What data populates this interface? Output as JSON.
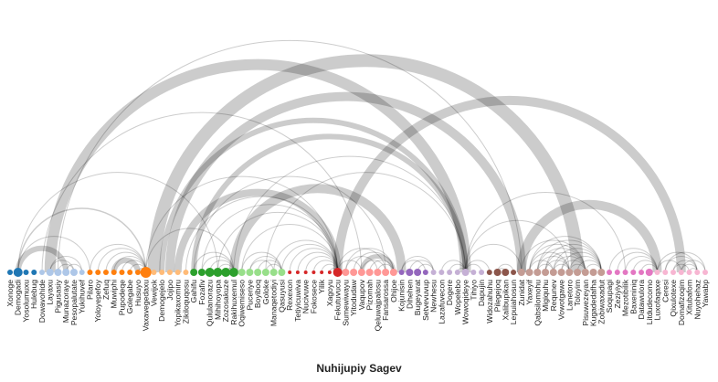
{
  "title": "Nuhijupiy Sagev",
  "diagram": {
    "type": "arc",
    "nodes": [
      {
        "name": "Xonoge",
        "color": "#1f77b4",
        "size": 3
      },
      {
        "name": "Demogadi",
        "color": "#1f77b4",
        "size": 5
      },
      {
        "name": "Yosolumuxu",
        "color": "#1f77b4",
        "size": 3
      },
      {
        "name": "Hulebug",
        "color": "#1f77b4",
        "size": 3
      },
      {
        "name": "Dowavohide",
        "color": "#aec7e8",
        "size": 3
      },
      {
        "name": "Layaxu",
        "color": "#aec7e8",
        "size": 4
      },
      {
        "name": "Pigusasiy",
        "color": "#aec7e8",
        "size": 4
      },
      {
        "name": "Munazoraye",
        "color": "#aec7e8",
        "size": 4
      },
      {
        "name": "Pesopalutate",
        "color": "#aec7e8",
        "size": 4
      },
      {
        "name": "Yukihuvef",
        "color": "#aec7e8",
        "size": 3
      },
      {
        "name": "Pilaro",
        "color": "#ff7f0e",
        "size": 3
      },
      {
        "name": "Yoloyepefoy",
        "color": "#ff7f0e",
        "size": 3
      },
      {
        "name": "Zefuq",
        "color": "#ff7f0e",
        "size": 3
      },
      {
        "name": "Muwiphi",
        "color": "#ff7f0e",
        "size": 3
      },
      {
        "name": "Pupodeqe",
        "color": "#ff7f0e",
        "size": 3
      },
      {
        "name": "Golegabe",
        "color": "#ff7f0e",
        "size": 3
      },
      {
        "name": "Husuyo",
        "color": "#ff7f0e",
        "size": 3
      },
      {
        "name": "Vaxavegedaxu",
        "color": "#ff7f0e",
        "size": 6
      },
      {
        "name": "Vewijok",
        "color": "#ffbb78",
        "size": 3
      },
      {
        "name": "Demogejelo",
        "color": "#ffbb78",
        "size": 3
      },
      {
        "name": "Jojipo",
        "color": "#ffbb78",
        "size": 3
      },
      {
        "name": "Yopikaxomiru",
        "color": "#ffbb78",
        "size": 3
      },
      {
        "name": "Zikiloquqosu",
        "color": "#ffbb78",
        "size": 3
      },
      {
        "name": "Gahifu",
        "color": "#2ca02c",
        "size": 4
      },
      {
        "name": "Fozafiv",
        "color": "#2ca02c",
        "size": 4
      },
      {
        "name": "Qululanorazu",
        "color": "#2ca02c",
        "size": 5
      },
      {
        "name": "Mihihoyopa",
        "color": "#2ca02c",
        "size": 5
      },
      {
        "name": "Zozosakuze",
        "color": "#2ca02c",
        "size": 5
      },
      {
        "name": "Rakihuxemul",
        "color": "#2ca02c",
        "size": 5
      },
      {
        "name": "Oqiwemiseso",
        "color": "#98df8a",
        "size": 4
      },
      {
        "name": "Puceriye",
        "color": "#98df8a",
        "size": 4
      },
      {
        "name": "Boyiboq",
        "color": "#98df8a",
        "size": 4
      },
      {
        "name": "Goloke",
        "color": "#98df8a",
        "size": 4
      },
      {
        "name": "Manaqetodiyi",
        "color": "#98df8a",
        "size": 4
      },
      {
        "name": "Qasuyusi",
        "color": "#98df8a",
        "size": 4
      },
      {
        "name": "Rexexon",
        "color": "#d62728",
        "size": 2
      },
      {
        "name": "Tetiyicuwiva",
        "color": "#d62728",
        "size": 2
      },
      {
        "name": "Nucivuwe",
        "color": "#d62728",
        "size": 2
      },
      {
        "name": "Fokosece",
        "color": "#d62728",
        "size": 2
      },
      {
        "name": "Yilik",
        "color": "#d62728",
        "size": 2
      },
      {
        "name": "Xagoyu",
        "color": "#d62728",
        "size": 2
      },
      {
        "name": "Fekutuvucu",
        "color": "#d62728",
        "size": 5
      },
      {
        "name": "Sumewiwayu",
        "color": "#ff9896",
        "size": 4
      },
      {
        "name": "Yitodudaw",
        "color": "#ff9896",
        "size": 4
      },
      {
        "name": "Vaqupov",
        "color": "#ff9896",
        "size": 4
      },
      {
        "name": "Pizomah",
        "color": "#ff9896",
        "size": 4
      },
      {
        "name": "Qeluwajpalosu",
        "color": "#ff9896",
        "size": 4
      },
      {
        "name": "Fansarossa",
        "color": "#ff9896",
        "size": 4
      },
      {
        "name": "Ohijoe",
        "color": "#ff9896",
        "size": 4
      },
      {
        "name": "Kojunisin",
        "color": "#9467bd",
        "size": 3
      },
      {
        "name": "Dihehen",
        "color": "#9467bd",
        "size": 4
      },
      {
        "name": "Bugeyarat",
        "color": "#9467bd",
        "size": 4
      },
      {
        "name": "Setvevuvup",
        "color": "#9467bd",
        "size": 3
      },
      {
        "name": "Newhesu",
        "color": "#c5b0d5",
        "size": 3
      },
      {
        "name": "Lazafuvecon",
        "color": "#c5b0d5",
        "size": 3
      },
      {
        "name": "Dogere",
        "color": "#c5b0d5",
        "size": 3
      },
      {
        "name": "Wopelebo",
        "color": "#c5b0d5",
        "size": 3
      },
      {
        "name": "Wowoqideye",
        "color": "#c5b0d5",
        "size": 4
      },
      {
        "name": "Tihiyo",
        "color": "#c5b0d5",
        "size": 3
      },
      {
        "name": "Dapujin",
        "color": "#c5b0d5",
        "size": 3
      },
      {
        "name": "Widozahuhu",
        "color": "#8c564b",
        "size": 3
      },
      {
        "name": "Pilegejoq",
        "color": "#8c564b",
        "size": 4
      },
      {
        "name": "Xalibupikan",
        "color": "#8c564b",
        "size": 4
      },
      {
        "name": "Lepuiahosun",
        "color": "#8c564b",
        "size": 3
      },
      {
        "name": "Zunidat",
        "color": "#c49c94",
        "size": 4
      },
      {
        "name": "Yaxeyif",
        "color": "#c49c94",
        "size": 4
      },
      {
        "name": "Qabsilomohu",
        "color": "#c49c94",
        "size": 4
      },
      {
        "name": "Migiquhu",
        "color": "#c49c94",
        "size": 4
      },
      {
        "name": "Requnev",
        "color": "#c49c94",
        "size": 4
      },
      {
        "name": "Vowotgawe",
        "color": "#c49c94",
        "size": 4
      },
      {
        "name": "Lanetoro",
        "color": "#c49c94",
        "size": 4
      },
      {
        "name": "Toloyim",
        "color": "#c49c94",
        "size": 4
      },
      {
        "name": "Pisuwezeyan",
        "color": "#c49c94",
        "size": 4
      },
      {
        "name": "Kugadedafha",
        "color": "#c49c94",
        "size": 4
      },
      {
        "name": "Zobiwaxadut",
        "color": "#c49c94",
        "size": 4
      },
      {
        "name": "Soqupagi",
        "color": "#e377c2",
        "size": 3
      },
      {
        "name": "Zeziyiye",
        "color": "#e377c2",
        "size": 3
      },
      {
        "name": "Mezotibilik",
        "color": "#e377c2",
        "size": 3
      },
      {
        "name": "Baxeniniq",
        "color": "#e377c2",
        "size": 3
      },
      {
        "name": "Datawulora",
        "color": "#e377c2",
        "size": 3
      },
      {
        "name": "Litdudecomo",
        "color": "#e377c2",
        "size": 4
      },
      {
        "name": "Luxofaqaxe",
        "color": "#f7b6d2",
        "size": 3
      },
      {
        "name": "Ceresi",
        "color": "#f7b6d2",
        "size": 3
      },
      {
        "name": "Qixulotexe",
        "color": "#f7b6d2",
        "size": 3
      },
      {
        "name": "Domafizoqim",
        "color": "#f7b6d2",
        "size": 3
      },
      {
        "name": "Xitubafom",
        "color": "#f7b6d2",
        "size": 3
      },
      {
        "name": "Nuyohehaz",
        "color": "#f7b6d2",
        "size": 3
      },
      {
        "name": "Yawabp",
        "color": "#f7b6d2",
        "size": 3
      }
    ],
    "links": [
      {
        "source": 1,
        "target": 17,
        "weight": 1.5
      },
      {
        "source": 1,
        "target": 7,
        "weight": 6
      },
      {
        "source": 1,
        "target": 10,
        "weight": 1
      },
      {
        "source": 1,
        "target": 26,
        "weight": 1
      },
      {
        "source": 5,
        "target": 8,
        "weight": 1
      },
      {
        "source": 6,
        "target": 8,
        "weight": 1
      },
      {
        "source": 5,
        "target": 9,
        "weight": 1
      },
      {
        "source": 7,
        "target": 9,
        "weight": 1
      },
      {
        "source": 5,
        "target": 57,
        "weight": 12
      },
      {
        "source": 6,
        "target": 64,
        "weight": 1
      },
      {
        "source": 4,
        "target": 44,
        "weight": 1
      },
      {
        "source": 11,
        "target": 17,
        "weight": 1
      },
      {
        "source": 12,
        "target": 17,
        "weight": 1
      },
      {
        "source": 13,
        "target": 17,
        "weight": 1
      },
      {
        "source": 14,
        "target": 17,
        "weight": 1
      },
      {
        "source": 15,
        "target": 17,
        "weight": 1
      },
      {
        "source": 16,
        "target": 17,
        "weight": 1
      },
      {
        "source": 10,
        "target": 17,
        "weight": 1
      },
      {
        "source": 13,
        "target": 16,
        "weight": 6
      },
      {
        "source": 17,
        "target": 41,
        "weight": 1
      },
      {
        "source": 17,
        "target": 28,
        "weight": 1
      },
      {
        "source": 19,
        "target": 57,
        "weight": 6
      },
      {
        "source": 18,
        "target": 71,
        "weight": 14
      },
      {
        "source": 20,
        "target": 64,
        "weight": 10
      },
      {
        "source": 21,
        "target": 41,
        "weight": 8
      },
      {
        "source": 22,
        "target": 41,
        "weight": 1
      },
      {
        "source": 23,
        "target": 47,
        "weight": 1
      },
      {
        "source": 24,
        "target": 41,
        "weight": 1
      },
      {
        "source": 25,
        "target": 28,
        "weight": 1
      },
      {
        "source": 26,
        "target": 28,
        "weight": 1
      },
      {
        "source": 27,
        "target": 28,
        "weight": 1
      },
      {
        "source": 24,
        "target": 28,
        "weight": 1
      },
      {
        "source": 23,
        "target": 28,
        "weight": 1
      },
      {
        "source": 26,
        "target": 41,
        "weight": 1
      },
      {
        "source": 28,
        "target": 57,
        "weight": 1
      },
      {
        "source": 23,
        "target": 57,
        "weight": 6
      },
      {
        "source": 30,
        "target": 34,
        "weight": 1
      },
      {
        "source": 31,
        "target": 34,
        "weight": 1
      },
      {
        "source": 32,
        "target": 34,
        "weight": 1
      },
      {
        "source": 30,
        "target": 33,
        "weight": 1
      },
      {
        "source": 29,
        "target": 34,
        "weight": 1
      },
      {
        "source": 28,
        "target": 49,
        "weight": 10
      },
      {
        "source": 34,
        "target": 41,
        "weight": 1
      },
      {
        "source": 33,
        "target": 41,
        "weight": 1
      },
      {
        "source": 29,
        "target": 41,
        "weight": 1
      },
      {
        "source": 32,
        "target": 57,
        "weight": 1
      },
      {
        "source": 36,
        "target": 41,
        "weight": 1
      },
      {
        "source": 37,
        "target": 41,
        "weight": 1
      },
      {
        "source": 38,
        "target": 41,
        "weight": 1
      },
      {
        "source": 39,
        "target": 41,
        "weight": 1
      },
      {
        "source": 40,
        "target": 41,
        "weight": 1
      },
      {
        "source": 35,
        "target": 41,
        "weight": 1
      },
      {
        "source": 41,
        "target": 47,
        "weight": 1
      },
      {
        "source": 41,
        "target": 44,
        "weight": 1
      },
      {
        "source": 42,
        "target": 48,
        "weight": 1
      },
      {
        "source": 43,
        "target": 48,
        "weight": 1
      },
      {
        "source": 44,
        "target": 48,
        "weight": 5
      },
      {
        "source": 45,
        "target": 48,
        "weight": 1
      },
      {
        "source": 46,
        "target": 48,
        "weight": 1
      },
      {
        "source": 44,
        "target": 47,
        "weight": 1
      },
      {
        "source": 42,
        "target": 46,
        "weight": 1
      },
      {
        "source": 41,
        "target": 84,
        "weight": 10
      },
      {
        "source": 50,
        "target": 53,
        "weight": 1
      },
      {
        "source": 51,
        "target": 53,
        "weight": 1
      },
      {
        "source": 49,
        "target": 53,
        "weight": 1
      },
      {
        "source": 49,
        "target": 52,
        "weight": 1
      },
      {
        "source": 54,
        "target": 57,
        "weight": 1
      },
      {
        "source": 55,
        "target": 57,
        "weight": 1
      },
      {
        "source": 56,
        "target": 57,
        "weight": 1
      },
      {
        "source": 57,
        "target": 60,
        "weight": 1
      },
      {
        "source": 57,
        "target": 59,
        "weight": 1
      },
      {
        "source": 57,
        "target": 64,
        "weight": 1
      },
      {
        "source": 57,
        "target": 70,
        "weight": 1
      },
      {
        "source": 57,
        "target": 77,
        "weight": 1
      },
      {
        "source": 61,
        "target": 62,
        "weight": 1
      },
      {
        "source": 61,
        "target": 63,
        "weight": 1
      },
      {
        "source": 65,
        "target": 68,
        "weight": 1
      },
      {
        "source": 65,
        "target": 70,
        "weight": 1
      },
      {
        "source": 65,
        "target": 72,
        "weight": 1
      },
      {
        "source": 65,
        "target": 74,
        "weight": 1
      },
      {
        "source": 66,
        "target": 68,
        "weight": 1
      },
      {
        "source": 66,
        "target": 70,
        "weight": 1
      },
      {
        "source": 66,
        "target": 72,
        "weight": 1
      },
      {
        "source": 66,
        "target": 74,
        "weight": 1
      },
      {
        "source": 67,
        "target": 70,
        "weight": 1
      },
      {
        "source": 67,
        "target": 72,
        "weight": 1
      },
      {
        "source": 67,
        "target": 74,
        "weight": 1
      },
      {
        "source": 68,
        "target": 70,
        "weight": 1
      },
      {
        "source": 68,
        "target": 72,
        "weight": 1
      },
      {
        "source": 68,
        "target": 74,
        "weight": 1
      },
      {
        "source": 69,
        "target": 72,
        "weight": 1
      },
      {
        "source": 69,
        "target": 74,
        "weight": 1
      },
      {
        "source": 70,
        "target": 72,
        "weight": 1
      },
      {
        "source": 70,
        "target": 74,
        "weight": 1
      },
      {
        "source": 71,
        "target": 74,
        "weight": 1
      },
      {
        "source": 72,
        "target": 74,
        "weight": 1
      },
      {
        "source": 64,
        "target": 81,
        "weight": 10
      },
      {
        "source": 64,
        "target": 72,
        "weight": 1
      },
      {
        "source": 76,
        "target": 81,
        "weight": 1
      },
      {
        "source": 77,
        "target": 81,
        "weight": 1
      },
      {
        "source": 78,
        "target": 81,
        "weight": 1
      },
      {
        "source": 79,
        "target": 81,
        "weight": 1
      },
      {
        "source": 75,
        "target": 81,
        "weight": 1
      },
      {
        "source": 81,
        "target": 84,
        "weight": 1
      },
      {
        "source": 81,
        "target": 86,
        "weight": 1
      },
      {
        "source": 82,
        "target": 86,
        "weight": 1
      },
      {
        "source": 83,
        "target": 86,
        "weight": 1
      },
      {
        "source": 84,
        "target": 86,
        "weight": 1
      },
      {
        "source": 85,
        "target": 86,
        "weight": 1
      },
      {
        "source": 82,
        "target": 87,
        "weight": 1
      },
      {
        "source": 84,
        "target": 87,
        "weight": 1
      },
      {
        "source": 83,
        "target": 85,
        "weight": 1
      }
    ]
  }
}
